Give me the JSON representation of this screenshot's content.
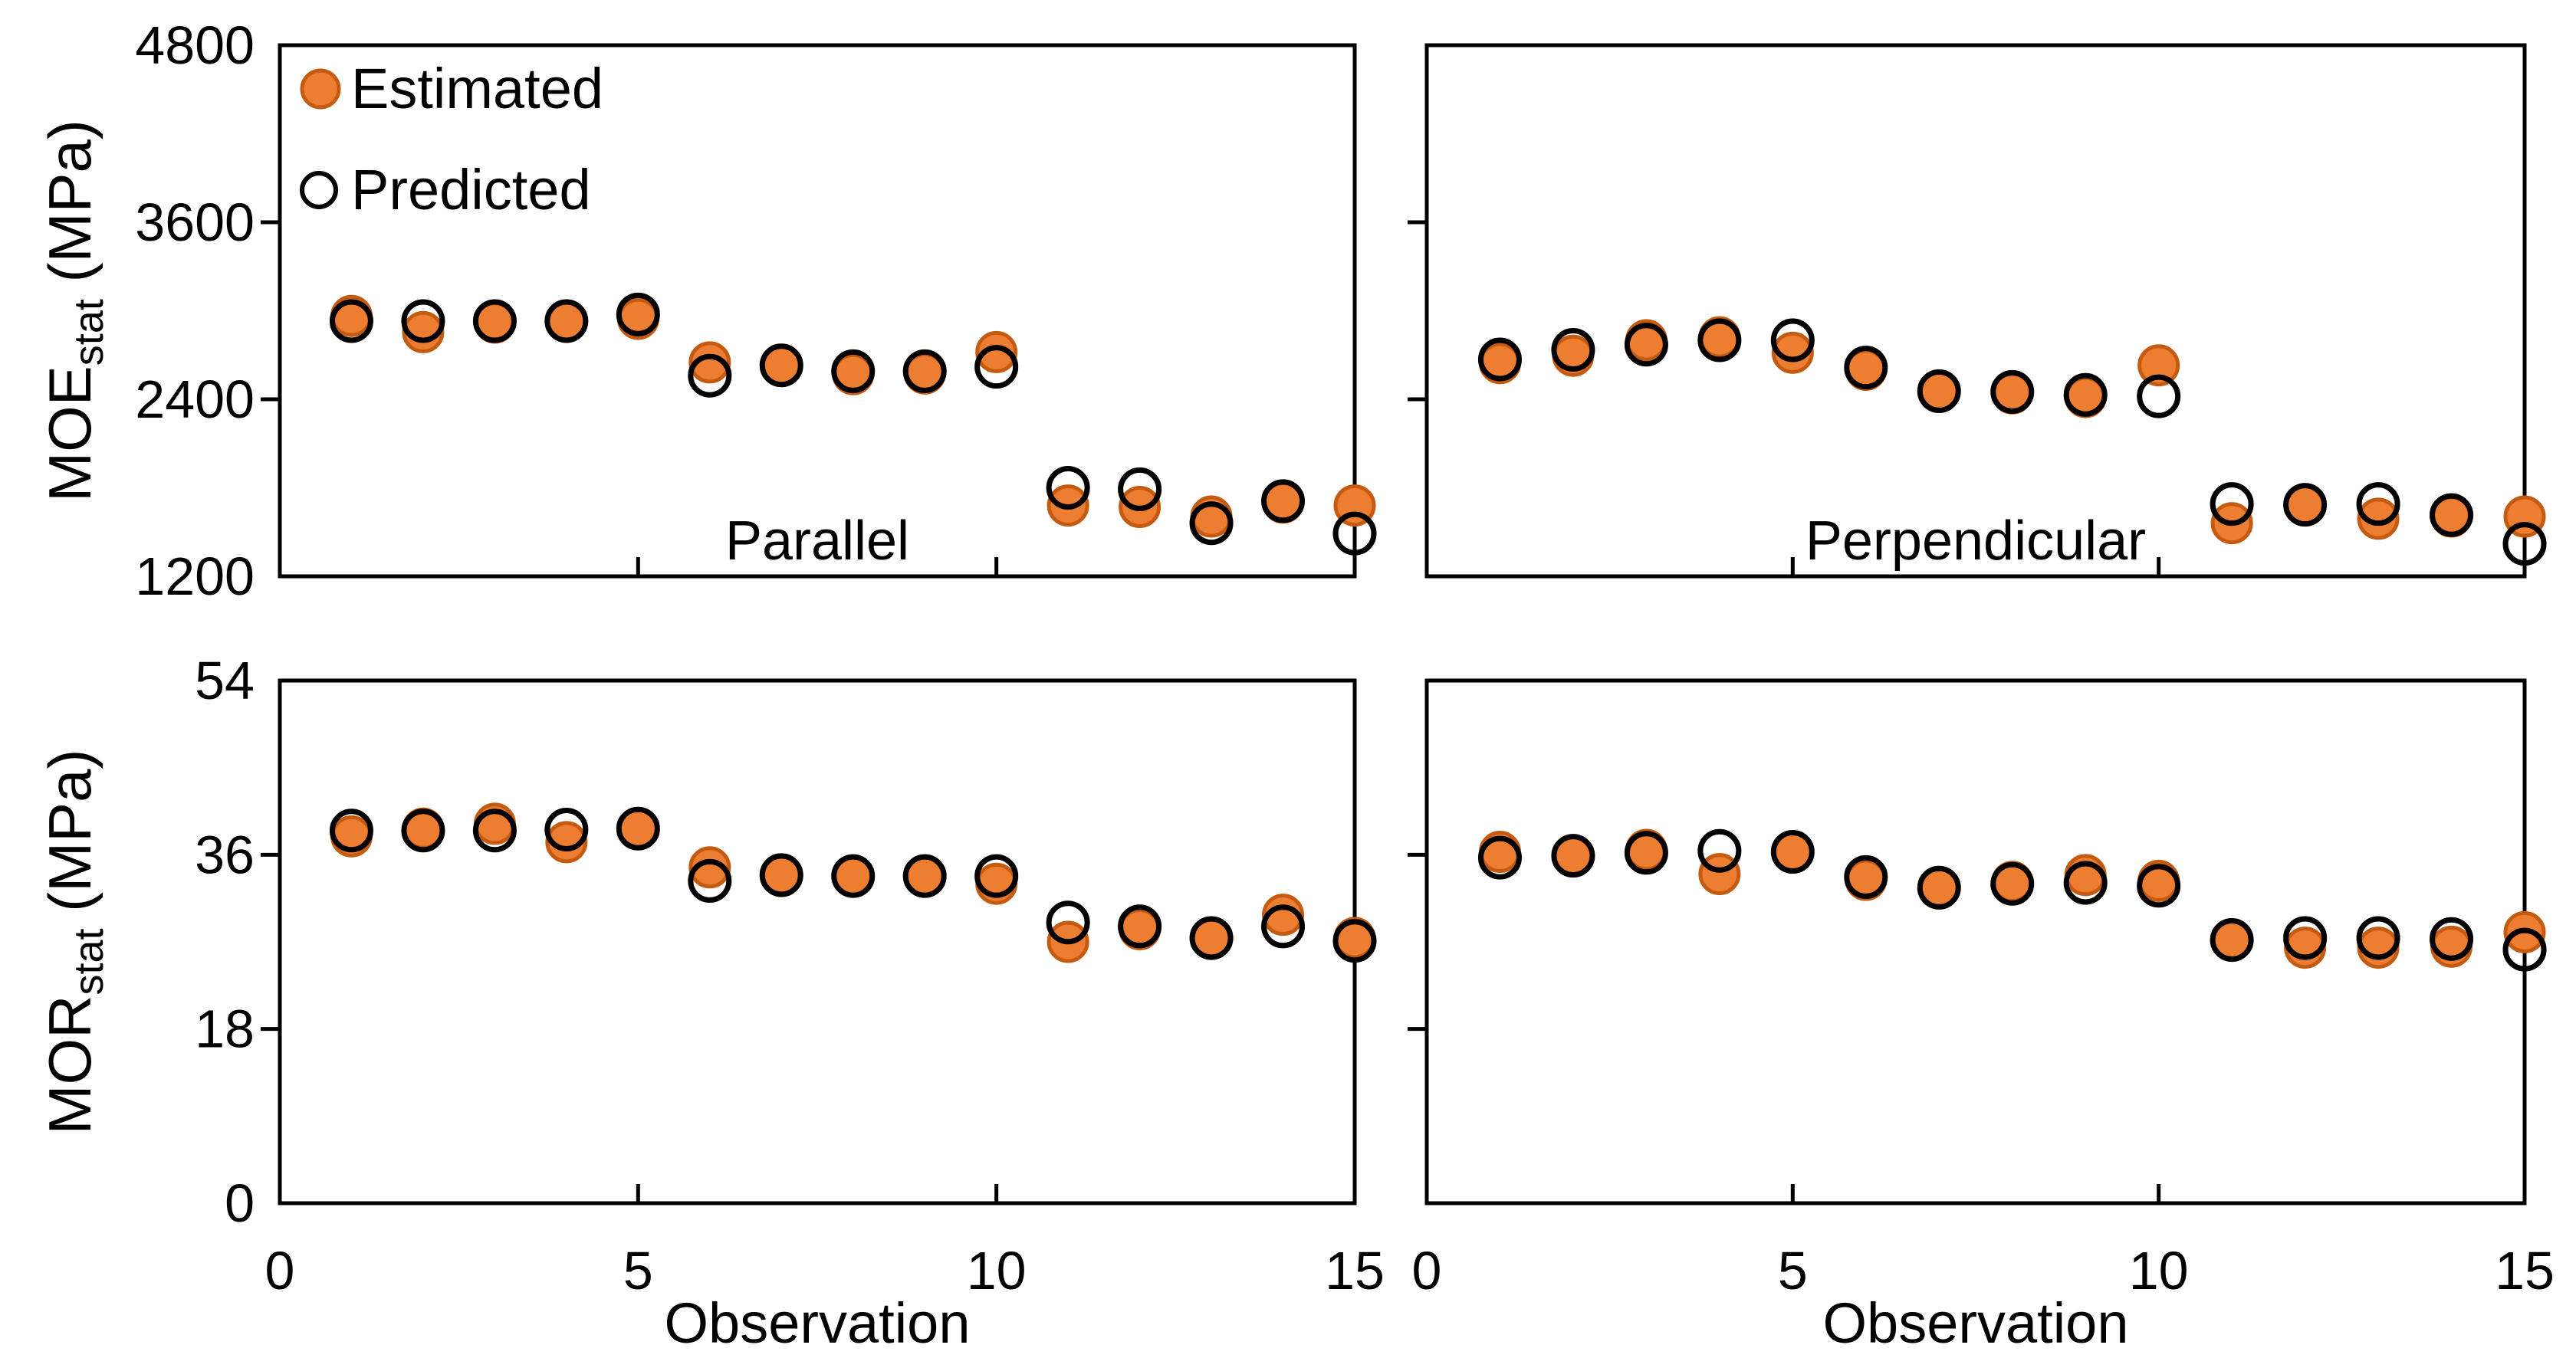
{
  "figure": {
    "background": "#ffffff",
    "x_axis_title": "Observation",
    "legend": {
      "position": "top-left-inside-first-panel",
      "items": [
        {
          "label": "Estimated",
          "marker": "filled-circle",
          "fill": "#ED7D31",
          "stroke": "#C55A11"
        },
        {
          "label": "Predicted",
          "marker": "open-circle",
          "fill": "none",
          "stroke": "#000000"
        }
      ]
    },
    "colors": {
      "estimated_fill": "#ED7D31",
      "estimated_stroke": "#C55A11",
      "predicted_stroke": "#000000",
      "axis": "#000000"
    }
  },
  "chart_data": [
    {
      "type": "scatter",
      "panel": "moe-parallel",
      "annotation": "Parallel",
      "ylabel": {
        "base": "MOE",
        "sub": "stat",
        "unit": " (MPa)"
      },
      "xlim": [
        0,
        15
      ],
      "ylim": [
        1200,
        4800
      ],
      "xticks": [
        0,
        5,
        10,
        15
      ],
      "yticks": [
        1200,
        2400,
        3600,
        4800
      ],
      "show_ytick_labels": true,
      "show_xtick_labels": false,
      "show_legend": true,
      "x": [
        1,
        2,
        3,
        4,
        5,
        6,
        7,
        8,
        9,
        10,
        11,
        12,
        13,
        14,
        15
      ],
      "series": [
        {
          "name": "Estimated",
          "values": [
            2965,
            2855,
            2920,
            2930,
            2945,
            2650,
            2630,
            2570,
            2575,
            2720,
            1680,
            1670,
            1605,
            1700,
            1680
          ]
        },
        {
          "name": "Predicted",
          "values": [
            2930,
            2930,
            2930,
            2930,
            2975,
            2560,
            2630,
            2590,
            2590,
            2620,
            1800,
            1790,
            1560,
            1710,
            1490
          ]
        }
      ]
    },
    {
      "type": "scatter",
      "panel": "moe-perpendicular",
      "annotation": "Perpendicular",
      "ylabel": null,
      "xlim": [
        0,
        15
      ],
      "ylim": [
        1200,
        4800
      ],
      "xticks": [
        0,
        5,
        10,
        15
      ],
      "yticks": [
        1200,
        2400,
        3600,
        4800
      ],
      "show_ytick_labels": false,
      "show_xtick_labels": false,
      "show_legend": false,
      "x": [
        1,
        2,
        3,
        4,
        5,
        6,
        7,
        8,
        9,
        10,
        11,
        12,
        13,
        14,
        15
      ],
      "series": [
        {
          "name": "Estimated",
          "values": [
            2645,
            2695,
            2800,
            2820,
            2715,
            2600,
            2450,
            2440,
            2415,
            2630,
            1560,
            1685,
            1590,
            1605,
            1605
          ]
        },
        {
          "name": "Predicted",
          "values": [
            2670,
            2735,
            2770,
            2800,
            2800,
            2615,
            2455,
            2450,
            2430,
            2420,
            1690,
            1685,
            1690,
            1615,
            1420
          ]
        }
      ]
    },
    {
      "type": "scatter",
      "panel": "mor-parallel",
      "annotation": "",
      "ylabel": {
        "base": "MOR",
        "sub": "stat",
        "unit": " (MPa)"
      },
      "xlim": [
        0,
        15
      ],
      "ylim": [
        0,
        54
      ],
      "xticks": [
        0,
        5,
        10,
        15
      ],
      "yticks": [
        0,
        18,
        36,
        54
      ],
      "show_ytick_labels": true,
      "show_xtick_labels": true,
      "show_legend": false,
      "x": [
        1,
        2,
        3,
        4,
        5,
        6,
        7,
        8,
        9,
        10,
        11,
        12,
        13,
        14,
        15
      ],
      "series": [
        {
          "name": "Estimated",
          "values": [
            37.9,
            38.7,
            39.2,
            37.3,
            38.7,
            34.7,
            33.8,
            33.8,
            33.8,
            33.0,
            27.0,
            28.3,
            27.3,
            29.8,
            27.4
          ]
        },
        {
          "name": "Predicted",
          "values": [
            38.5,
            38.5,
            38.5,
            38.6,
            38.7,
            33.3,
            33.9,
            33.8,
            33.8,
            33.8,
            29.0,
            28.6,
            27.4,
            28.6,
            27.1
          ]
        }
      ]
    },
    {
      "type": "scatter",
      "panel": "mor-perpendicular",
      "annotation": "",
      "ylabel": null,
      "xlim": [
        0,
        15
      ],
      "ylim": [
        0,
        54
      ],
      "xticks": [
        0,
        5,
        10,
        15
      ],
      "yticks": [
        0,
        18,
        36,
        54
      ],
      "show_ytick_labels": false,
      "show_xtick_labels": true,
      "show_legend": false,
      "x": [
        1,
        2,
        3,
        4,
        5,
        6,
        7,
        8,
        9,
        10,
        11,
        12,
        13,
        14,
        15
      ],
      "series": [
        {
          "name": "Estimated",
          "values": [
            36.3,
            35.9,
            36.5,
            34.0,
            36.3,
            33.4,
            32.5,
            33.2,
            33.9,
            33.3,
            27.1,
            26.4,
            26.4,
            26.5,
            28.0
          ]
        },
        {
          "name": "Predicted",
          "values": [
            35.7,
            35.9,
            36.2,
            36.4,
            36.3,
            33.7,
            32.6,
            33.0,
            33.1,
            32.8,
            27.2,
            27.4,
            27.4,
            27.3,
            26.2
          ]
        }
      ]
    }
  ]
}
